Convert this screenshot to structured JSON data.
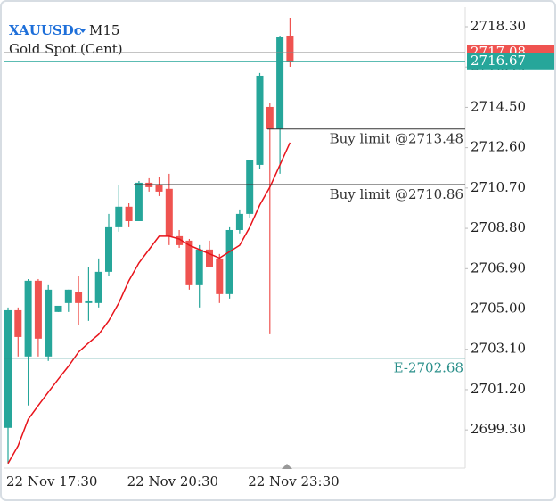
{
  "chart_data": {
    "type": "candlestick",
    "title": "XAUUSDc",
    "timeframe": "M15",
    "subtitle": "Gold Spot (Cent)",
    "up_color": "#26a69a",
    "down_color": "#ef5350",
    "categories": [
      "22 Nov 17:30",
      null,
      null,
      null,
      null,
      null,
      null,
      null,
      null,
      null,
      null,
      null,
      "22 Nov 20:30",
      null,
      null,
      null,
      null,
      null,
      null,
      null,
      null,
      null,
      null,
      null,
      "22 Nov 23:30",
      null,
      null,
      null,
      null
    ],
    "open": [
      2699.4,
      2704.94,
      2702.76,
      2706.33,
      2702.76,
      2704.86,
      2705.28,
      2705.78,
      2705.28,
      2705.28,
      2706.75,
      2708.85,
      2709.82,
      2709.14,
      2710.95,
      2710.82,
      2710.66,
      2708.43,
      2708.22,
      2706.12,
      2707.8,
      2707.38,
      2705.7,
      2708.72,
      2709.48,
      2711.79,
      2714.52,
      2713.47,
      2717.88
    ],
    "high": [
      2705.07,
      2705.07,
      2706.41,
      2706.41,
      2706.12,
      2705.07,
      2705.91,
      2706.54,
      2706.96,
      2707.38,
      2709.48,
      2710.82,
      2709.98,
      2711.03,
      2711.16,
      2711.24,
      2711.37,
      2708.72,
      2708.3,
      2708.01,
      2708.22,
      2707.59,
      2708.85,
      2709.69,
      2712.0,
      2716.12,
      2714.73,
      2717.88,
      2718.72
    ],
    "low": [
      2697.72,
      2702.76,
      2700.45,
      2702.76,
      2702.55,
      2704.86,
      2704.86,
      2704.23,
      2704.44,
      2705.07,
      2706.54,
      2708.64,
      2708.85,
      2709.14,
      2710.53,
      2710.32,
      2708.01,
      2707.88,
      2705.91,
      2705.07,
      2706.96,
      2705.28,
      2705.49,
      2708.56,
      2709.27,
      2711.58,
      2703.81,
      2711.37,
      2716.41
    ],
    "close": [
      2704.94,
      2703.68,
      2706.33,
      2703.6,
      2705.91,
      2705.15,
      2705.91,
      2705.28,
      2705.36,
      2706.75,
      2708.85,
      2709.82,
      2709.14,
      2710.95,
      2710.74,
      2710.53,
      2708.43,
      2708.01,
      2706.12,
      2707.8,
      2706.96,
      2705.7,
      2708.72,
      2709.48,
      2712.0,
      2715.99,
      2713.47,
      2717.8,
      2716.67
    ],
    "ma": {
      "color": "#e8141b",
      "values": [
        2697.72,
        2698.55,
        2699.8,
        2700.45,
        2701.08,
        2701.7,
        2702.3,
        2702.97,
        2703.4,
        2703.8,
        2704.44,
        2705.28,
        2706.33,
        2707.17,
        2707.8,
        2708.43,
        2708.43,
        2708.3,
        2708.0,
        2707.8,
        2707.6,
        2707.4,
        2707.7,
        2708.0,
        2708.85,
        2709.9,
        2710.74,
        2711.79,
        2712.84
      ]
    },
    "ylim": [
      2697.5,
      2718.93
    ],
    "yticks": [
      {
        "value": 2718.3,
        "label": "2718.30"
      },
      {
        "value": 2716.4,
        "label": "2716.40"
      },
      {
        "value": 2714.5,
        "label": "2714.50"
      },
      {
        "value": 2712.6,
        "label": "2712.60"
      },
      {
        "value": 2710.7,
        "label": "2710.70"
      },
      {
        "value": 2708.8,
        "label": "2708.80"
      },
      {
        "value": 2706.9,
        "label": "2706.90"
      },
      {
        "value": 2705.0,
        "label": "2705.00"
      },
      {
        "value": 2703.1,
        "label": "2703.10"
      },
      {
        "value": 2701.2,
        "label": "2701.20"
      },
      {
        "value": 2699.3,
        "label": "2699.30"
      }
    ],
    "levels": [
      {
        "value": 2713.48,
        "label": "Buy limit @2713.48"
      },
      {
        "value": 2710.86,
        "label": "Buy limit @2710.86"
      },
      {
        "value": 2702.68,
        "label": "E-2702.68",
        "color": "#2a8f8a"
      }
    ],
    "bid": {
      "value": 2717.08,
      "color": "#ef5350"
    },
    "ask": {
      "value": 2716.67,
      "color": "#26a69a"
    }
  }
}
